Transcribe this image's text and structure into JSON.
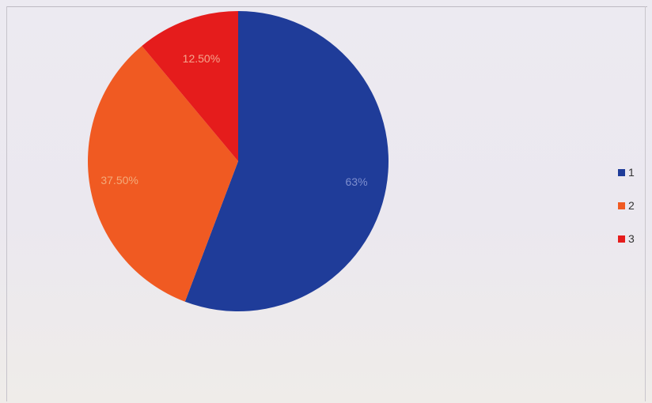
{
  "chart_data": {
    "type": "pie",
    "slices": [
      {
        "name": "1",
        "label": "63%",
        "value": 63,
        "color": "#1f3c99"
      },
      {
        "name": "2",
        "label": "37.50%",
        "value": 37.5,
        "color": "#f05a22"
      },
      {
        "name": "3",
        "label": "12.50%",
        "value": 12.5,
        "color": "#e51c1c"
      }
    ],
    "legend_placement": "right",
    "start_angle_deg": 0,
    "direction": "clockwise"
  }
}
